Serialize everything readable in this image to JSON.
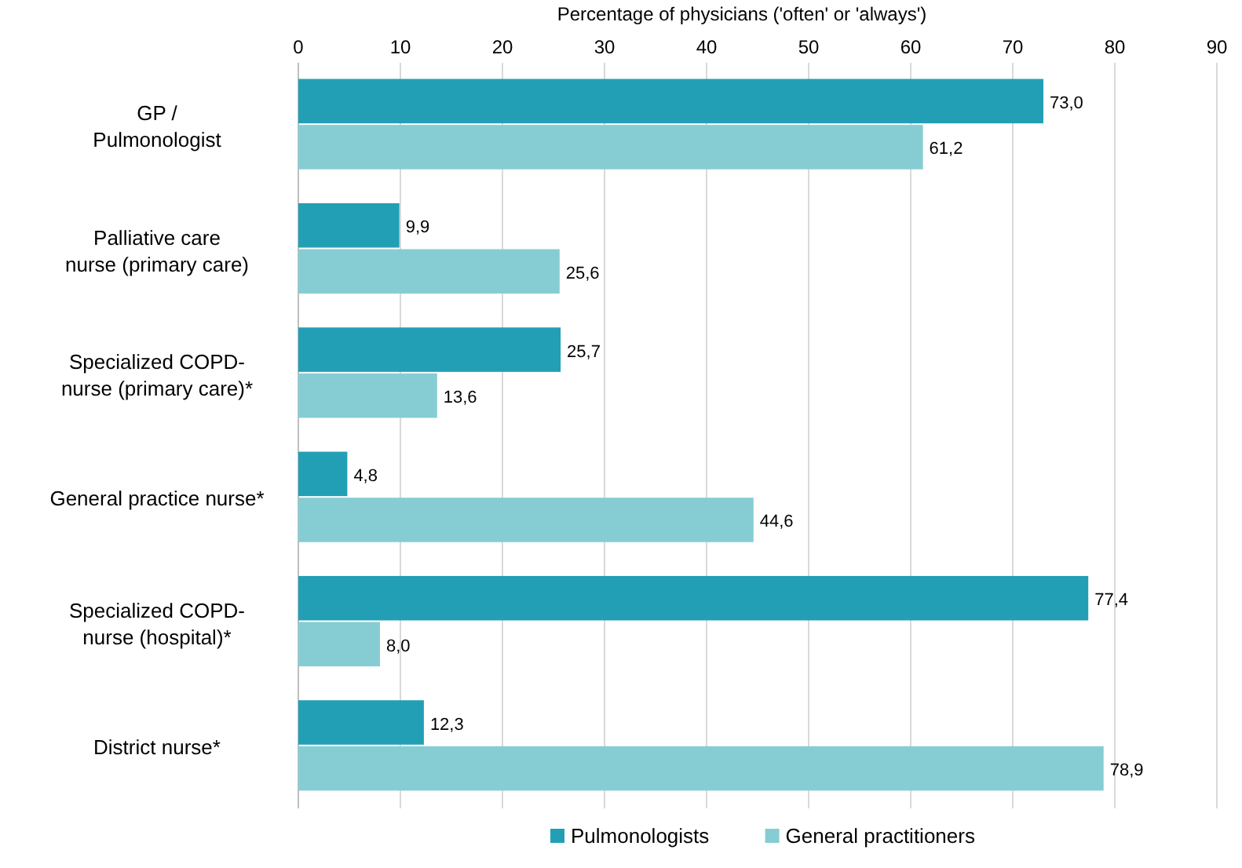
{
  "chart_data": {
    "type": "bar",
    "orientation": "horizontal",
    "xlabel": "Percentage of physicians ('often' or 'always')",
    "categories": [
      "GP /\nPulmonologist",
      "Palliative care\nnurse (primary care)",
      "Specialized COPD-\nnurse (primary care)*",
      "General practice nurse*",
      "Specialized COPD-\nnurse (hospital)*",
      "District nurse*"
    ],
    "series": [
      {
        "name": "Pulmonologists",
        "color": "#239fb5",
        "values": [
          73.0,
          9.9,
          25.7,
          4.8,
          77.4,
          12.3
        ],
        "value_labels": [
          "73,0",
          "9,9",
          "25,7",
          "4,8",
          "77,4",
          "12,3"
        ]
      },
      {
        "name": "General practitioners",
        "color": "#86cdd3",
        "values": [
          61.2,
          25.6,
          13.6,
          44.6,
          8.0,
          78.9
        ],
        "value_labels": [
          "61,2",
          "25,6",
          "13,6",
          "44,6",
          "8,0",
          "78,9"
        ]
      }
    ],
    "xlim": [
      0,
      90
    ],
    "xticks": [
      0,
      10,
      20,
      30,
      40,
      50,
      60,
      70,
      80,
      90
    ],
    "grid": "x",
    "legend": "bottom"
  }
}
